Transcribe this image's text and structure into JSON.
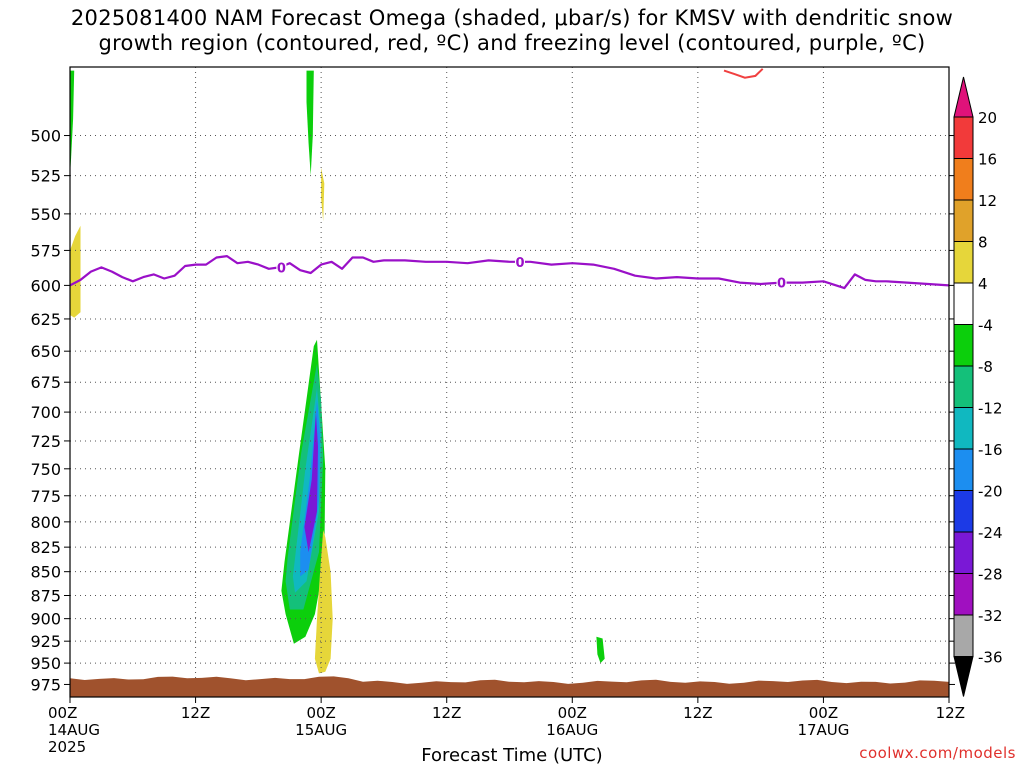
{
  "title": {
    "line1": "2025081400 NAM Forecast Omega (shaded, μbar/s) for KMSV with dendritic snow",
    "line2": "growth region (contoured, red, ºC) and freezing level (contoured, purple, ºC)"
  },
  "credit": "coolwx.com/models",
  "chart_data": {
    "type": "heatmap",
    "xlabel": "Forecast Time (UTC)",
    "ylabel": "",
    "x_ticks": [
      {
        "hour": 0,
        "line1": "00Z",
        "line2": "14AUG",
        "line3": "2025"
      },
      {
        "hour": 12,
        "line1": "12Z",
        "line2": "",
        "line3": ""
      },
      {
        "hour": 24,
        "line1": "00Z",
        "line2": "15AUG",
        "line3": ""
      },
      {
        "hour": 36,
        "line1": "12Z",
        "line2": "",
        "line3": ""
      },
      {
        "hour": 48,
        "line1": "00Z",
        "line2": "16AUG",
        "line3": ""
      },
      {
        "hour": 60,
        "line1": "12Z",
        "line2": "",
        "line3": ""
      },
      {
        "hour": 72,
        "line1": "00Z",
        "line2": "17AUG",
        "line3": ""
      },
      {
        "hour": 84,
        "line1": "12Z",
        "line2": "",
        "line3": ""
      }
    ],
    "xlim_hours": [
      0,
      84
    ],
    "y_ticks": [
      500,
      525,
      550,
      575,
      600,
      625,
      650,
      675,
      700,
      725,
      750,
      775,
      800,
      825,
      850,
      875,
      900,
      925,
      950,
      975
    ],
    "ylim_hpa": [
      460,
      990
    ],
    "y_scale": "log",
    "grid": true,
    "colorbar": {
      "labels": [
        "20",
        "16",
        "12",
        "8",
        "4",
        "-4",
        "-8",
        "-12",
        "-16",
        "-20",
        "-24",
        "-28",
        "-32",
        "-36"
      ],
      "colors": [
        "#e0127a",
        "#f23a3a",
        "#f07e1c",
        "#e0a22a",
        "#e6d63a",
        "#ffffff",
        "#0ccf0c",
        "#14c07a",
        "#10b8c0",
        "#1c8ef0",
        "#1c3ae6",
        "#7a18d6",
        "#a010c0",
        "#a8a8a8",
        "#000000"
      ],
      "position": "right"
    },
    "freezing_level": {
      "label": "0",
      "color": "#9a10c8",
      "x_hours": [
        0,
        1,
        2,
        3,
        4,
        5,
        6,
        7,
        8,
        9,
        10,
        11,
        12,
        13,
        14,
        15,
        16,
        17,
        18,
        19,
        20,
        21,
        22,
        23,
        24,
        25,
        26,
        27,
        28,
        29,
        30,
        32,
        34,
        36,
        38,
        40,
        42,
        44,
        46,
        48,
        50,
        52,
        54,
        56,
        58,
        60,
        62,
        64,
        66,
        68,
        70,
        72,
        74,
        75,
        76,
        77,
        78,
        80,
        82,
        84
      ],
      "y_hpa": [
        600,
        596,
        590,
        587,
        590,
        594,
        597,
        594,
        592,
        595,
        593,
        586,
        585,
        585,
        580,
        579,
        584,
        583,
        585,
        588,
        587,
        584,
        589,
        591,
        585,
        583,
        588,
        580,
        580,
        583,
        582,
        582,
        583,
        583,
        584,
        582,
        583,
        583,
        585,
        584,
        585,
        588,
        593,
        595,
        594,
        595,
        595,
        598,
        599,
        598,
        598,
        597,
        602,
        592,
        596,
        597,
        597,
        598,
        599,
        600
      ]
    },
    "dgz_contour": {
      "color": "#f04040",
      "x_hours": [
        62.5,
        63.5,
        64.5,
        65.5,
        66.2
      ],
      "y_hpa": [
        462,
        464,
        466,
        465,
        461
      ]
    },
    "terrain": {
      "color": "#a0522d",
      "surface_hpa": 970
    },
    "omega_regions": [
      {
        "name": "upper-left-green",
        "value": -6,
        "x_hours": [
          0,
          0.4,
          0.3,
          0.1,
          0
        ],
        "y_hpa": [
          462,
          462,
          490,
          515,
          525
        ]
      },
      {
        "name": "left-yellow",
        "value": 5,
        "x_hours": [
          0,
          0.5,
          1.0,
          1.0,
          0.4,
          0
        ],
        "y_hpa": [
          575,
          565,
          558,
          620,
          624,
          622
        ]
      },
      {
        "name": "upper-green",
        "value": -6,
        "x_hours": [
          22.6,
          23.3,
          23.2,
          23.0,
          22.8,
          22.6
        ],
        "y_hpa": [
          462,
          462,
          500,
          525,
          505,
          480
        ]
      },
      {
        "name": "upper-yellow",
        "value": 5,
        "x_hours": [
          24.0,
          24.3,
          24.2,
          24.0
        ],
        "y_hpa": [
          520,
          530,
          555,
          540
        ]
      },
      {
        "name": "main-green",
        "value": -6,
        "x_hours": [
          23.6,
          23.3,
          21.9,
          20.5,
          20.2,
          20.6,
          21.4,
          22.5,
          23.4,
          24.3,
          24.4,
          23.9
        ],
        "y_hpa": [
          641,
          646,
          735,
          840,
          870,
          895,
          928,
          920,
          895,
          840,
          750,
          680
        ]
      },
      {
        "name": "main-teal",
        "value": -10,
        "x_hours": [
          23.6,
          22.1,
          20.8,
          20.6,
          21.0,
          22.3,
          23.8,
          24.2,
          24.0
        ],
        "y_hpa": [
          660,
          735,
          835,
          860,
          890,
          890,
          830,
          740,
          690
        ]
      },
      {
        "name": "main-cyan",
        "value": -14,
        "x_hours": [
          23.6,
          22.5,
          21.3,
          21.5,
          22.6,
          23.8,
          24.0
        ],
        "y_hpa": [
          680,
          750,
          855,
          872,
          860,
          790,
          720
        ]
      },
      {
        "name": "main-blue",
        "value": -18,
        "x_hours": [
          23.6,
          22.9,
          22.0,
          22.0,
          22.8,
          23.8,
          23.9
        ],
        "y_hpa": [
          690,
          760,
          830,
          855,
          848,
          780,
          720
        ]
      },
      {
        "name": "main-purple",
        "value": -26,
        "x_hours": [
          23.5,
          23.1,
          22.4,
          22.8,
          23.6,
          23.7
        ],
        "y_hpa": [
          700,
          760,
          805,
          830,
          790,
          730
        ]
      },
      {
        "name": "lower-yellow",
        "value": 5,
        "x_hours": [
          24.2,
          24.4,
          24.9,
          25.1,
          24.9,
          24.4,
          23.8,
          23.4,
          23.6,
          23.9
        ],
        "y_hpa": [
          808,
          815,
          850,
          900,
          945,
          960,
          962,
          945,
          900,
          850
        ]
      },
      {
        "name": "small-green",
        "value": -6,
        "x_hours": [
          50.3,
          50.9,
          51.1,
          50.7,
          50.4
        ],
        "y_hpa": [
          920,
          922,
          945,
          950,
          940
        ]
      }
    ]
  }
}
